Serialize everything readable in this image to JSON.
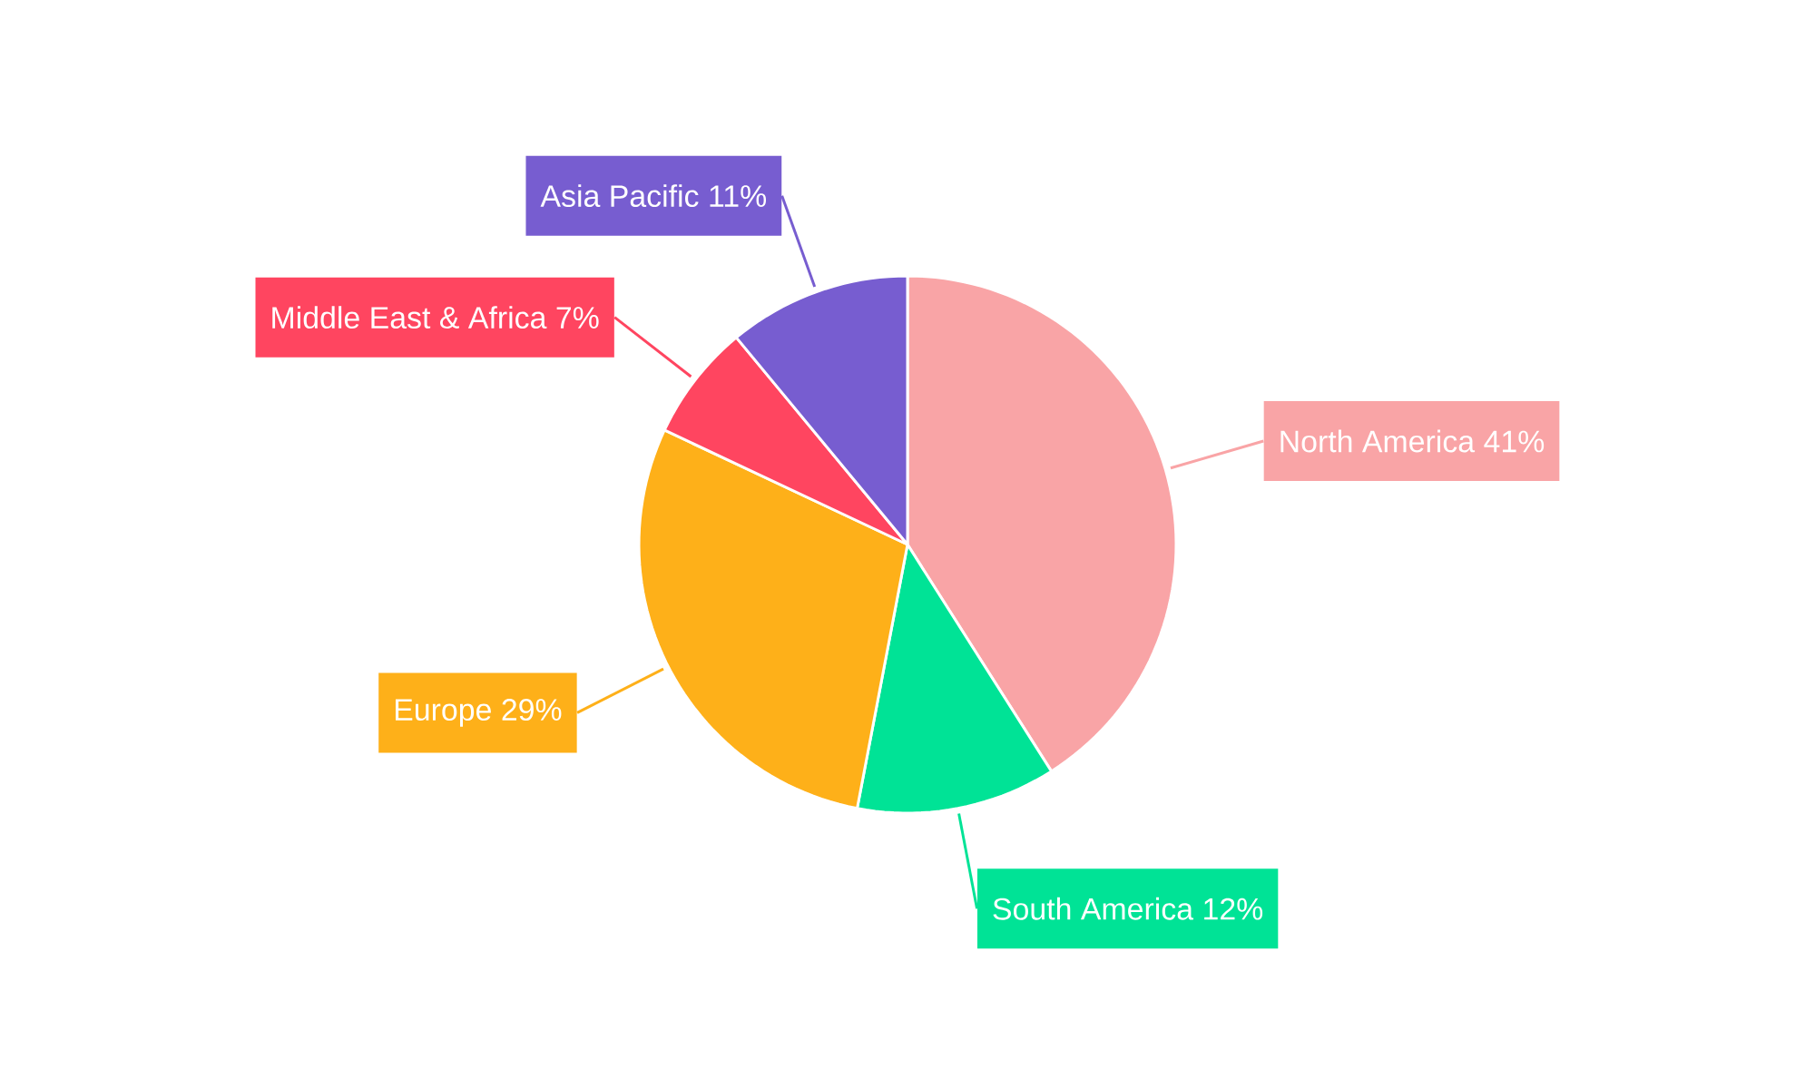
{
  "chart_data": {
    "type": "pie",
    "categories": [
      "North America",
      "South America",
      "Europe",
      "Middle East & Africa",
      "Asia Pacific"
    ],
    "values": [
      41,
      12,
      29,
      7,
      11
    ],
    "value_labels": [
      "41%",
      "12%",
      "29%",
      "7%",
      "11%"
    ],
    "colors": [
      "#f9a4a6",
      "#00e396",
      "#feb019",
      "#ff4560",
      "#775dd0"
    ]
  }
}
